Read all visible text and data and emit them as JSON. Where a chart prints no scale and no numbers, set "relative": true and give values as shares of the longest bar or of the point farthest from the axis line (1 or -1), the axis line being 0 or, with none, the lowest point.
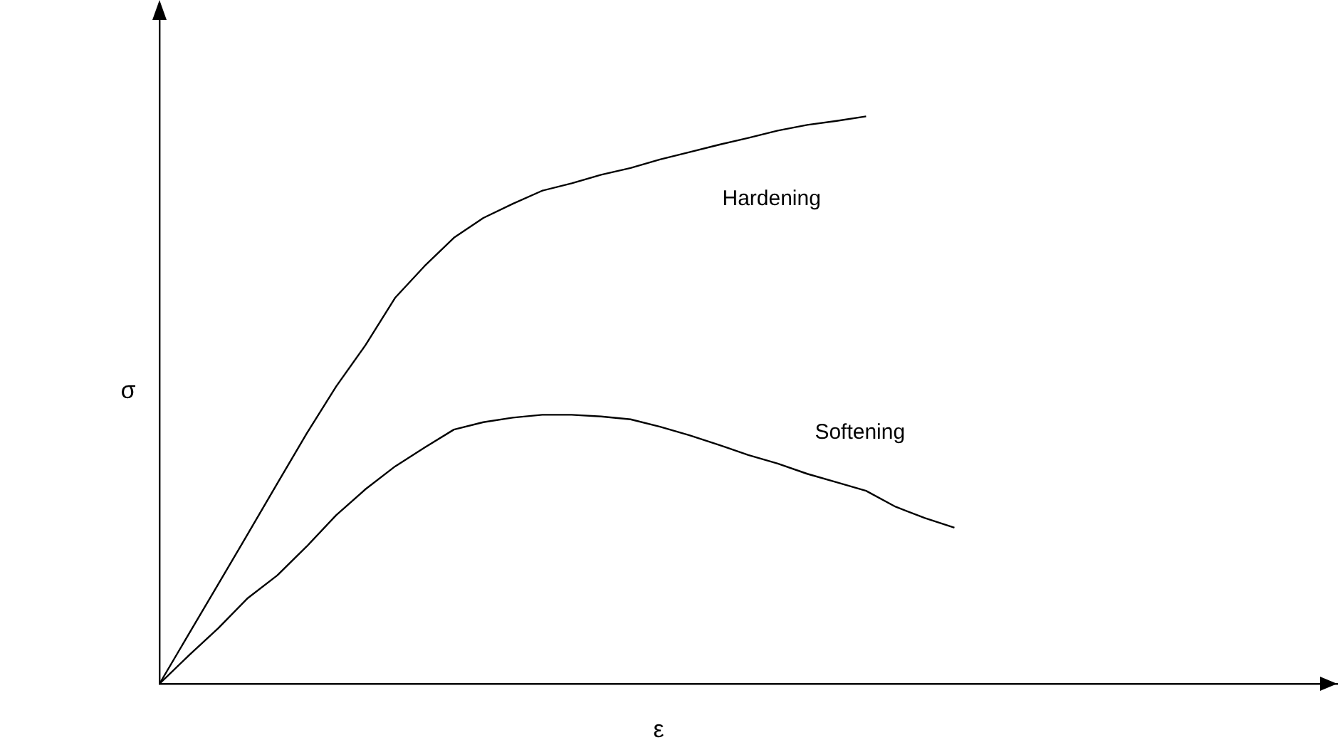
{
  "chart_data": {
    "type": "line",
    "relative": true,
    "xlabel": "ε",
    "ylabel": "σ",
    "marker": "none",
    "line_style": "solid",
    "legend": false,
    "grid": false,
    "categories": [
      null,
      null,
      null,
      null,
      null,
      null,
      null,
      null,
      null,
      null,
      null,
      null,
      null,
      null,
      null,
      null,
      null,
      null,
      null,
      null,
      null,
      null,
      null,
      null,
      null,
      null,
      null,
      null,
      null,
      null,
      null,
      null,
      null,
      null,
      null,
      null,
      null,
      null,
      null,
      null,
      null
    ],
    "series": [
      {
        "name": "Hardening",
        "color": "#000000",
        "values": [
          0,
          0.088,
          0.176,
          0.264,
          0.353,
          0.441,
          0.524,
          0.597,
          0.68,
          0.736,
          0.786,
          0.821,
          0.846,
          0.869,
          0.882,
          0.897,
          0.909,
          0.924,
          0.937,
          0.95,
          0.962,
          0.975,
          0.985,
          0.992,
          1,
          null,
          null,
          null,
          null,
          null,
          null,
          null,
          null,
          null,
          null,
          null,
          null,
          null,
          null,
          null,
          null
        ]
      },
      {
        "name": "Softening",
        "color": "#000000",
        "values": [
          0,
          0.05,
          0.098,
          0.151,
          0.191,
          0.242,
          0.297,
          0.343,
          0.383,
          0.416,
          0.448,
          0.461,
          0.469,
          0.474,
          0.474,
          0.471,
          0.466,
          0.453,
          0.438,
          0.421,
          0.403,
          0.388,
          0.37,
          0.355,
          0.34,
          0.312,
          0.292,
          0.275,
          null,
          null,
          null,
          null,
          null,
          null,
          null,
          null,
          null,
          null,
          null,
          null,
          null
        ]
      }
    ]
  }
}
